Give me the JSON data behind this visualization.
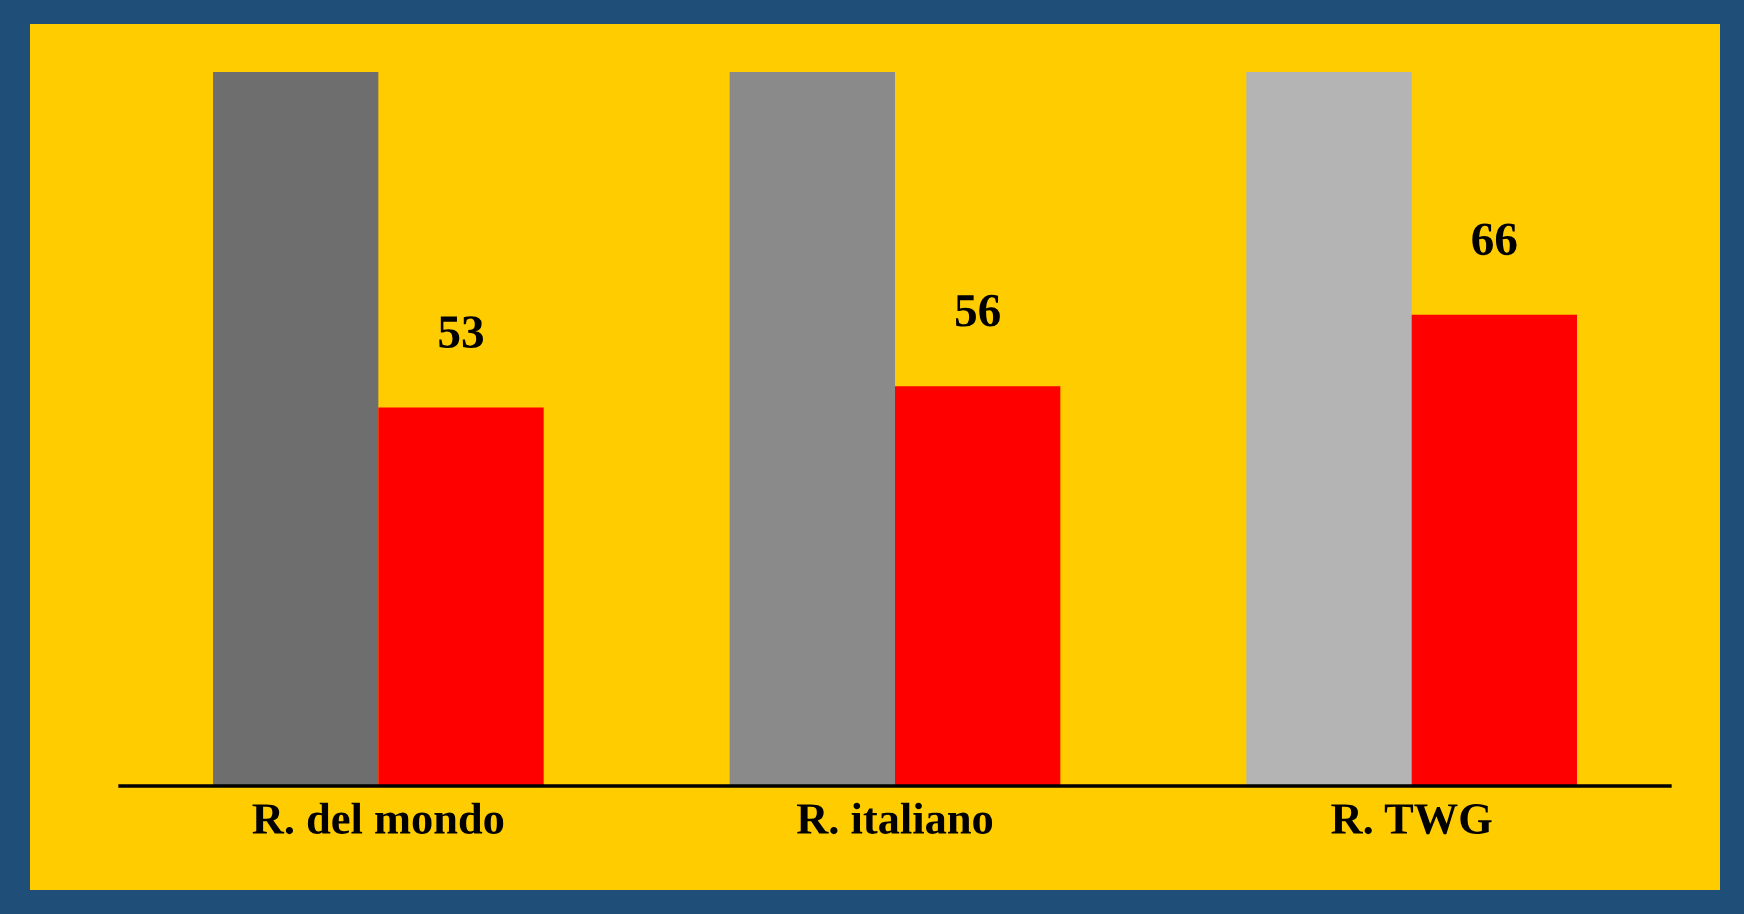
{
  "chart_data": {
    "type": "bar",
    "categories": [
      "R. del mondo",
      "R. italiano",
      "R. TWG"
    ],
    "series": [
      {
        "colors": [
          "#6e6e6e",
          "#8a8a8a",
          "#b4b4b4"
        ],
        "values": [
          100,
          100,
          100
        ],
        "value_labels": [
          null,
          null,
          null
        ]
      },
      {
        "color": "#ff0000",
        "values": [
          53,
          56,
          66
        ],
        "value_labels": [
          "53",
          "56",
          "66"
        ]
      }
    ],
    "grid": false,
    "legend": false
  }
}
